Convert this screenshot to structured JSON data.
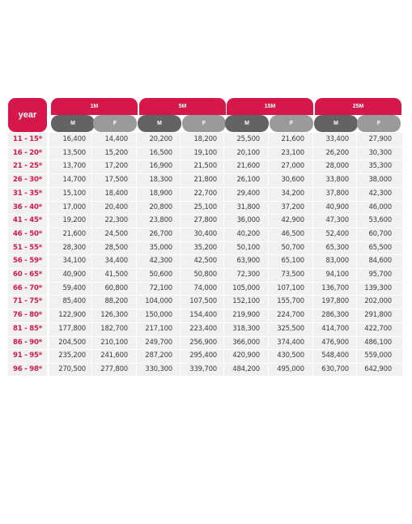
{
  "table": {
    "year_label": "year",
    "plans": [
      "1M",
      "5M",
      "15M",
      "25M"
    ],
    "male_label": "M",
    "female_label": "F",
    "rows": [
      {
        "age": "11 - 15*",
        "values": [
          "16,400",
          "14,400",
          "20,200",
          "18,200",
          "25,500",
          "21,600",
          "33,400",
          "27,900"
        ]
      },
      {
        "age": "16 - 20*",
        "values": [
          "13,500",
          "15,200",
          "16,500",
          "19,100",
          "20,100",
          "23,100",
          "26,200",
          "30,300"
        ]
      },
      {
        "age": "21 - 25*",
        "values": [
          "13,700",
          "17,200",
          "16,900",
          "21,500",
          "21,600",
          "27,000",
          "28,000",
          "35,300"
        ]
      },
      {
        "age": "26 - 30*",
        "values": [
          "14,700",
          "17,500",
          "18,300",
          "21,800",
          "26,100",
          "30,600",
          "33,800",
          "38,000"
        ]
      },
      {
        "age": "31 - 35*",
        "values": [
          "15,100",
          "18,400",
          "18,900",
          "22,700",
          "29,400",
          "34,200",
          "37,800",
          "42,300"
        ]
      },
      {
        "age": "36 - 40*",
        "values": [
          "17,000",
          "20,400",
          "20,800",
          "25,100",
          "31,800",
          "37,200",
          "40,900",
          "46,000"
        ]
      },
      {
        "age": "41 - 45*",
        "values": [
          "19,200",
          "22,300",
          "23,800",
          "27,800",
          "36,000",
          "42,900",
          "47,300",
          "53,600"
        ]
      },
      {
        "age": "46 - 50*",
        "values": [
          "21,600",
          "24,500",
          "26,700",
          "30,400",
          "40,200",
          "46,500",
          "52,400",
          "60,700"
        ]
      },
      {
        "age": "51 - 55*",
        "values": [
          "28,300",
          "28,500",
          "35,000",
          "35,200",
          "50,100",
          "50,700",
          "65,300",
          "65,500"
        ]
      },
      {
        "age": "56 - 59*",
        "values": [
          "34,100",
          "34,400",
          "42,300",
          "42,500",
          "63,900",
          "65,100",
          "83,000",
          "84,600"
        ]
      },
      {
        "age": "60 - 65*",
        "values": [
          "40,900",
          "41,500",
          "50,600",
          "50,800",
          "72,300",
          "73,500",
          "94,100",
          "95,700"
        ]
      },
      {
        "age": "66 - 70*",
        "values": [
          "59,400",
          "60,800",
          "72,100",
          "74,000",
          "105,000",
          "107,100",
          "136,700",
          "139,300"
        ]
      },
      {
        "age": "71 - 75*",
        "values": [
          "85,400",
          "88,200",
          "104,000",
          "107,500",
          "152,100",
          "155,700",
          "197,800",
          "202,000"
        ]
      },
      {
        "age": "76 - 80*",
        "values": [
          "122,900",
          "126,300",
          "150,000",
          "154,400",
          "219,900",
          "224,700",
          "286,300",
          "291,800"
        ]
      },
      {
        "age": "81 - 85*",
        "values": [
          "177,800",
          "182,700",
          "217,100",
          "223,400",
          "318,300",
          "325,500",
          "414,700",
          "422,700"
        ]
      },
      {
        "age": "86 - 90*",
        "values": [
          "204,500",
          "210,100",
          "249,700",
          "256,900",
          "366,000",
          "374,400",
          "476,900",
          "486,100"
        ]
      },
      {
        "age": "91 - 95*",
        "values": [
          "235,200",
          "241,600",
          "287,200",
          "295,400",
          "420,900",
          "430,500",
          "548,400",
          "559,000"
        ]
      },
      {
        "age": "96 - 98*",
        "values": [
          "270,500",
          "277,800",
          "330,300",
          "339,700",
          "484,200",
          "495,000",
          "630,700",
          "642,900"
        ]
      }
    ]
  }
}
